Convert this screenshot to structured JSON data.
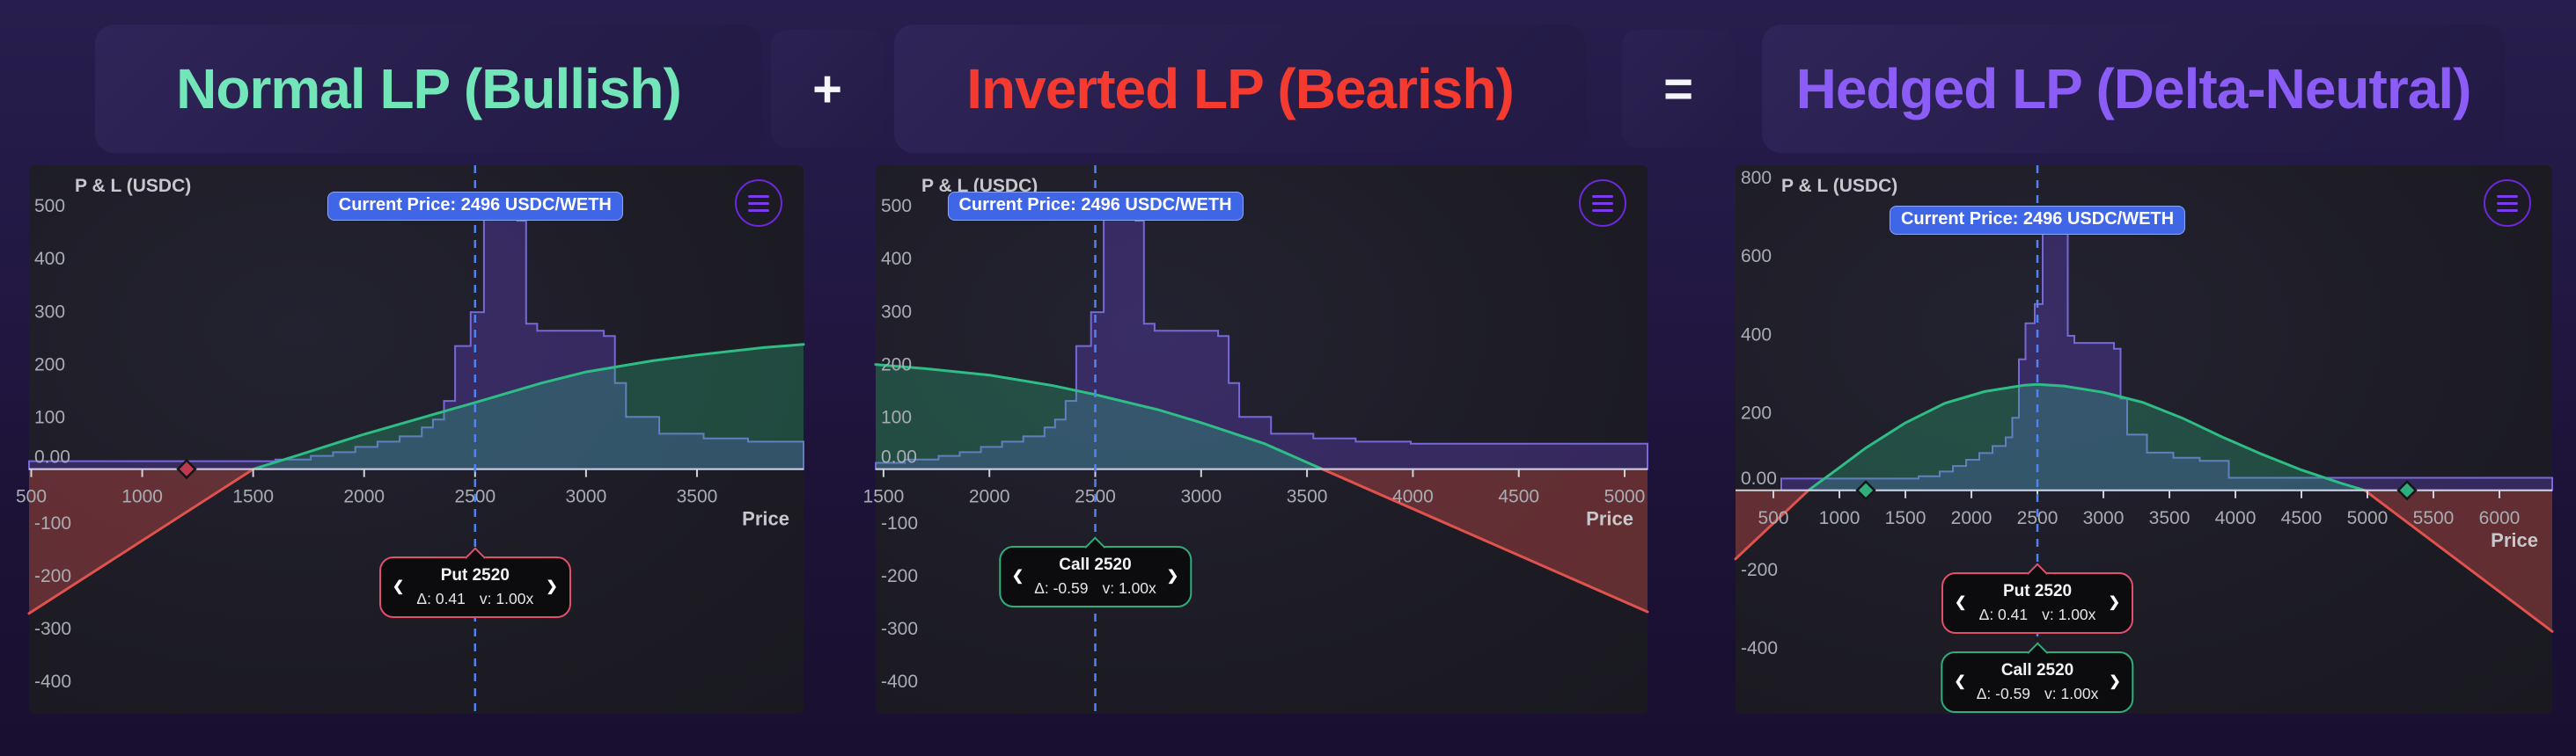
{
  "header": {
    "panels": [
      {
        "label": "Normal LP (Bullish)",
        "color": "#72e6b8"
      },
      {
        "label": "Inverted LP (Bearish)",
        "color": "#f53b30"
      },
      {
        "label": "Hedged LP (Delta-Neutral)",
        "color": "#8b5cf6"
      }
    ],
    "operators": [
      "+",
      "="
    ]
  },
  "colors": {
    "page_bg": "#1c1236",
    "panel_bg": "#18171e",
    "axis": "#cfd2d6",
    "tick_text": "#a9adb3",
    "axis_title": "#c6c8cc",
    "lp_stroke": "#2dbd85",
    "lp_fill": "rgba(45,185,130,0.30)",
    "hedge_stroke": "#e0524e",
    "hedge_fill": "rgba(196,74,74,0.42)",
    "liq_stroke": "#7668d6",
    "liq_fill": "rgba(94,64,190,0.38)",
    "price_line": "#4f83f1",
    "badge_bg": "#4066e8",
    "put_accent": "#e0506b",
    "call_accent": "#2fae7c",
    "marker_red": "#bf3a50",
    "marker_green": "#2fae7c"
  },
  "chart_data": [
    {
      "id": "normal-lp",
      "type": "area",
      "panel_title": "Normal LP (Bullish)",
      "ylabel": "P & L (USDC)",
      "xlabel": "Price",
      "current_price_label": "Current Price: 2496 USDC/WETH",
      "current_price": 2496,
      "price_line_x": 2500,
      "badge_top": 30,
      "xlim": [
        490,
        3980
      ],
      "ylim": [
        -463,
        575
      ],
      "x_ticks": [
        500,
        1000,
        1500,
        2000,
        2500,
        3000,
        3500
      ],
      "y_ticks": [
        500,
        400,
        300,
        200,
        100,
        0,
        -100,
        -200,
        -300,
        -400
      ],
      "lp_curve": [
        [
          1500,
          0
        ],
        [
          1700,
          26
        ],
        [
          2000,
          66
        ],
        [
          2300,
          102
        ],
        [
          2500,
          126
        ],
        [
          2800,
          163
        ],
        [
          3000,
          184
        ],
        [
          3300,
          205
        ],
        [
          3500,
          216
        ],
        [
          3800,
          230
        ],
        [
          3980,
          236
        ]
      ],
      "hedge": [
        [
          [
            490,
            -273
          ],
          [
            1500,
            0
          ]
        ]
      ],
      "liquidity": {
        "bins": [
          [
            490,
            15
          ],
          [
            1600,
            18
          ],
          [
            1760,
            25
          ],
          [
            1860,
            32
          ],
          [
            1960,
            42
          ],
          [
            2060,
            52
          ],
          [
            2160,
            62
          ],
          [
            2260,
            79
          ],
          [
            2310,
            94
          ],
          [
            2360,
            129
          ],
          [
            2410,
            233
          ],
          [
            2480,
            297
          ],
          [
            2540,
            495
          ],
          [
            2690,
            470
          ],
          [
            2730,
            275
          ],
          [
            2780,
            262
          ],
          [
            3080,
            252
          ],
          [
            3130,
            163
          ],
          [
            3180,
            99
          ],
          [
            3330,
            67
          ],
          [
            3530,
            58
          ],
          [
            3730,
            52
          ],
          [
            3980,
            52
          ]
        ]
      },
      "markers": [
        {
          "x": 1200,
          "color": "#bf3a50",
          "kind": "put-strike"
        }
      ],
      "tooltips": [
        {
          "kind": "put",
          "title": "Put 2520",
          "delta": "Δ: 0.41",
          "size": "v: 1.00x",
          "accent": "#e0506b",
          "top": 445
        }
      ]
    },
    {
      "id": "inverted-lp",
      "type": "area",
      "panel_title": "Inverted LP (Bearish)",
      "ylabel": "P & L (USDC)",
      "xlabel": "Price",
      "current_price_label": "Current Price: 2496 USDC/WETH",
      "current_price": 2496,
      "price_line_x": 2500,
      "badge_top": 30,
      "xlim": [
        1463,
        5108
      ],
      "ylim": [
        -463,
        575
      ],
      "x_ticks": [
        1500,
        2000,
        2500,
        3000,
        3500,
        4000,
        4500,
        5000
      ],
      "y_ticks": [
        500,
        400,
        300,
        200,
        100,
        0,
        -100,
        -200,
        -300,
        -400
      ],
      "lp_curve": [
        [
          1463,
          198
        ],
        [
          1700,
          190
        ],
        [
          2000,
          178
        ],
        [
          2300,
          158
        ],
        [
          2500,
          141
        ],
        [
          2800,
          112
        ],
        [
          3000,
          88
        ],
        [
          3300,
          48
        ],
        [
          3573,
          0
        ]
      ],
      "hedge": [
        [
          [
            3573,
            0
          ],
          [
            5108,
            -270
          ]
        ]
      ],
      "liquidity": {
        "bins": [
          [
            1463,
            12
          ],
          [
            1600,
            18
          ],
          [
            1760,
            25
          ],
          [
            1860,
            32
          ],
          [
            1960,
            42
          ],
          [
            2060,
            52
          ],
          [
            2160,
            62
          ],
          [
            2260,
            79
          ],
          [
            2310,
            94
          ],
          [
            2360,
            129
          ],
          [
            2410,
            233
          ],
          [
            2480,
            297
          ],
          [
            2540,
            495
          ],
          [
            2690,
            470
          ],
          [
            2730,
            275
          ],
          [
            2780,
            262
          ],
          [
            3080,
            252
          ],
          [
            3130,
            163
          ],
          [
            3180,
            99
          ],
          [
            3330,
            67
          ],
          [
            3530,
            58
          ],
          [
            3730,
            52
          ],
          [
            3990,
            48
          ],
          [
            5108,
            48
          ]
        ]
      },
      "markers": [],
      "tooltips": [
        {
          "kind": "call",
          "title": "Call 2520",
          "delta": "Δ: -0.59",
          "size": "v: 1.00x",
          "accent": "#2fae7c",
          "top": 433
        }
      ]
    },
    {
      "id": "hedged-lp",
      "type": "area",
      "panel_title": "Hedged LP (Delta-Neutral)",
      "ylabel": "P & L (USDC)",
      "xlabel": "Price",
      "current_price_label": "Current Price: 2496 USDC/WETH",
      "current_price": 2496,
      "price_line_x": 2500,
      "badge_top": 46,
      "xlim": [
        213,
        6400
      ],
      "ylim": [
        -570,
        829
      ],
      "x_ticks": [
        500,
        1000,
        1500,
        2000,
        2500,
        3000,
        3500,
        4000,
        4500,
        5000,
        5500,
        6000
      ],
      "y_ticks": [
        800,
        600,
        400,
        200,
        0,
        -200,
        -400
      ],
      "lp_curve": [
        [
          765,
          0
        ],
        [
          1000,
          58
        ],
        [
          1200,
          108
        ],
        [
          1500,
          172
        ],
        [
          1800,
          222
        ],
        [
          2100,
          252
        ],
        [
          2400,
          268
        ],
        [
          2500,
          270
        ],
        [
          2700,
          266
        ],
        [
          3000,
          250
        ],
        [
          3300,
          224
        ],
        [
          3600,
          184
        ],
        [
          3900,
          136
        ],
        [
          4200,
          92
        ],
        [
          4500,
          52
        ],
        [
          4800,
          18
        ],
        [
          4980,
          0
        ]
      ],
      "hedge": [
        [
          [
            213,
            -175
          ],
          [
            765,
            0
          ]
        ],
        [
          [
            4980,
            0
          ],
          [
            6400,
            -360
          ]
        ]
      ],
      "liquidity": {
        "bins": [
          [
            560,
            30
          ],
          [
            1600,
            36
          ],
          [
            1760,
            48
          ],
          [
            1860,
            62
          ],
          [
            1960,
            78
          ],
          [
            2060,
            95
          ],
          [
            2160,
            113
          ],
          [
            2260,
            135
          ],
          [
            2310,
            185
          ],
          [
            2360,
            334
          ],
          [
            2410,
            426
          ],
          [
            2480,
            475
          ],
          [
            2540,
            710
          ],
          [
            2690,
            674
          ],
          [
            2730,
            394
          ],
          [
            2780,
            376
          ],
          [
            3080,
            361
          ],
          [
            3130,
            234
          ],
          [
            3180,
            142
          ],
          [
            3330,
            96
          ],
          [
            3530,
            83
          ],
          [
            3730,
            75
          ],
          [
            3950,
            32
          ],
          [
            6400,
            32
          ]
        ]
      },
      "markers": [
        {
          "x": 1200,
          "color": "#2fae7c",
          "kind": "put-strike"
        },
        {
          "x": 5300,
          "color": "#2fae7c",
          "kind": "call-strike"
        }
      ],
      "tooltips": [
        {
          "kind": "put",
          "title": "Put 2520",
          "delta": "Δ: 0.41",
          "size": "v: 1.00x",
          "accent": "#e0506b",
          "top": 463
        },
        {
          "kind": "call",
          "title": "Call 2520",
          "delta": "Δ: -0.59",
          "size": "v: 1.00x",
          "accent": "#2fae7c",
          "top": 553
        }
      ]
    }
  ]
}
